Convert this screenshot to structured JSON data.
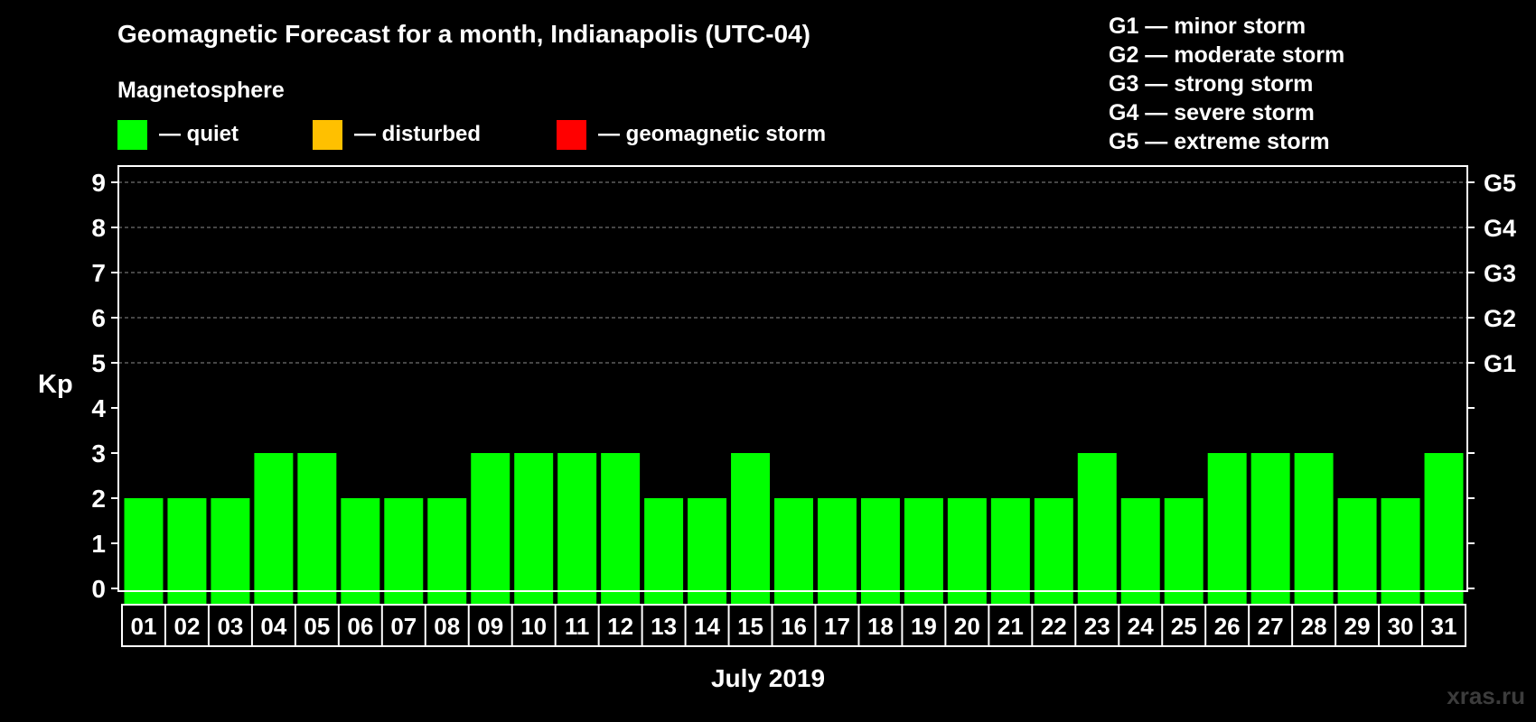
{
  "chart_data": {
    "type": "bar",
    "title": "Geomagnetic Forecast for a month, Indianapolis (UTC-04)",
    "subtitle": "Magnetosphere",
    "xlabel": "July 2019",
    "ylabel": "Kp",
    "ylim": [
      0,
      9
    ],
    "yticks": [
      "0",
      "1",
      "2",
      "3",
      "4",
      "5",
      "6",
      "7",
      "8",
      "9"
    ],
    "right_ticks": [
      {
        "value": 5,
        "label": "G1"
      },
      {
        "value": 6,
        "label": "G2"
      },
      {
        "value": 7,
        "label": "G3"
      },
      {
        "value": 8,
        "label": "G4"
      },
      {
        "value": 9,
        "label": "G5"
      }
    ],
    "grid": true,
    "categories": [
      "01",
      "02",
      "03",
      "04",
      "05",
      "06",
      "07",
      "08",
      "09",
      "10",
      "11",
      "12",
      "13",
      "14",
      "15",
      "16",
      "17",
      "18",
      "19",
      "20",
      "21",
      "22",
      "23",
      "24",
      "25",
      "26",
      "27",
      "28",
      "29",
      "30",
      "31"
    ],
    "values": [
      2,
      2,
      2,
      3,
      3,
      2,
      2,
      2,
      3,
      3,
      3,
      3,
      2,
      2,
      3,
      2,
      2,
      2,
      2,
      2,
      2,
      2,
      3,
      2,
      2,
      3,
      3,
      3,
      2,
      2,
      3
    ],
    "legend": [
      {
        "color": "#00ff00",
        "label": "— quiet"
      },
      {
        "color": "#ffc000",
        "label": "— disturbed"
      },
      {
        "color": "#ff0000",
        "label": "— geomagnetic storm"
      }
    ],
    "storm_levels": [
      "G1 — minor storm",
      "G2 — moderate storm",
      "G3 — strong storm",
      "G4 — severe storm",
      "G5 — extreme storm"
    ],
    "bar_color": "#00ff00"
  },
  "watermark": "xras.ru"
}
